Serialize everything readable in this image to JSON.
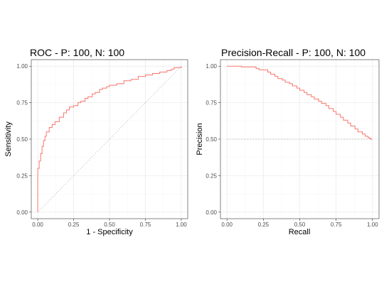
{
  "colors": {
    "curve": "#F8766D",
    "grid_major": "#EBEBEB",
    "grid_minor": "#F5F5F5",
    "border": "#333333",
    "reference": "#B3B3B3"
  },
  "chart_data": [
    {
      "id": "roc",
      "type": "line",
      "step": true,
      "title": "ROC - P: 100, N: 100",
      "xlabel": "1 - Specificity",
      "ylabel": "Sensitivity",
      "xlim": [
        0,
        1
      ],
      "ylim": [
        0,
        1
      ],
      "xticks": [
        0,
        0.25,
        0.5,
        0.75,
        1
      ],
      "xtick_labels": [
        "0.00",
        "0.25",
        "0.50",
        "0.75",
        "1.00"
      ],
      "yticks": [
        0,
        0.25,
        0.5,
        0.75,
        1
      ],
      "ytick_labels": [
        "0.00",
        "0.25",
        "0.50",
        "0.75",
        "1.00"
      ],
      "reference": {
        "style": "dotted",
        "from": [
          0,
          0
        ],
        "to": [
          1,
          1
        ]
      },
      "series": [
        {
          "name": "ROC",
          "x": [
            0,
            0,
            0.01,
            0.02,
            0.03,
            0.04,
            0.05,
            0.06,
            0.08,
            0.1,
            0.12,
            0.15,
            0.18,
            0.2,
            0.22,
            0.25,
            0.28,
            0.3,
            0.33,
            0.35,
            0.38,
            0.4,
            0.43,
            0.45,
            0.48,
            0.5,
            0.55,
            0.6,
            0.65,
            0.7,
            0.75,
            0.8,
            0.85,
            0.9,
            0.93,
            0.95,
            0.98,
            1.0
          ],
          "y": [
            0,
            0.3,
            0.35,
            0.4,
            0.45,
            0.49,
            0.52,
            0.55,
            0.58,
            0.6,
            0.62,
            0.65,
            0.68,
            0.7,
            0.72,
            0.73,
            0.75,
            0.76,
            0.78,
            0.79,
            0.81,
            0.82,
            0.84,
            0.85,
            0.86,
            0.87,
            0.88,
            0.9,
            0.91,
            0.93,
            0.94,
            0.95,
            0.96,
            0.97,
            0.98,
            0.99,
            0.99,
            1.0
          ]
        }
      ]
    },
    {
      "id": "pr",
      "type": "line",
      "step": true,
      "title": "Precision-Recall - P: 100, N: 100",
      "xlabel": "Recall",
      "ylabel": "Precision",
      "xlim": [
        0,
        1
      ],
      "ylim": [
        0,
        1
      ],
      "xticks": [
        0,
        0.25,
        0.5,
        0.75,
        1
      ],
      "xtick_labels": [
        "0.00",
        "0.25",
        "0.50",
        "0.75",
        "1.00"
      ],
      "yticks": [
        0,
        0.25,
        0.5,
        0.75,
        1
      ],
      "ytick_labels": [
        "0.00",
        "0.25",
        "0.50",
        "0.75",
        "1.00"
      ],
      "reference": {
        "style": "dashed",
        "from": [
          0,
          0.5
        ],
        "to": [
          1,
          0.5
        ]
      },
      "series": [
        {
          "name": "Precision-Recall",
          "x": [
            0,
            0.1,
            0.12,
            0.2,
            0.22,
            0.28,
            0.3,
            0.33,
            0.35,
            0.38,
            0.4,
            0.43,
            0.45,
            0.48,
            0.5,
            0.53,
            0.55,
            0.58,
            0.6,
            0.63,
            0.65,
            0.68,
            0.7,
            0.73,
            0.75,
            0.78,
            0.8,
            0.83,
            0.85,
            0.88,
            0.9,
            0.93,
            0.95,
            0.97,
            0.98,
            0.99,
            1.0
          ],
          "y": [
            1.0,
            1.0,
            0.995,
            0.995,
            0.985,
            0.975,
            0.96,
            0.945,
            0.93,
            0.915,
            0.905,
            0.89,
            0.88,
            0.865,
            0.85,
            0.835,
            0.82,
            0.805,
            0.79,
            0.775,
            0.76,
            0.745,
            0.73,
            0.71,
            0.69,
            0.67,
            0.65,
            0.63,
            0.61,
            0.59,
            0.57,
            0.55,
            0.535,
            0.52,
            0.51,
            0.505,
            0.5
          ]
        }
      ]
    }
  ]
}
